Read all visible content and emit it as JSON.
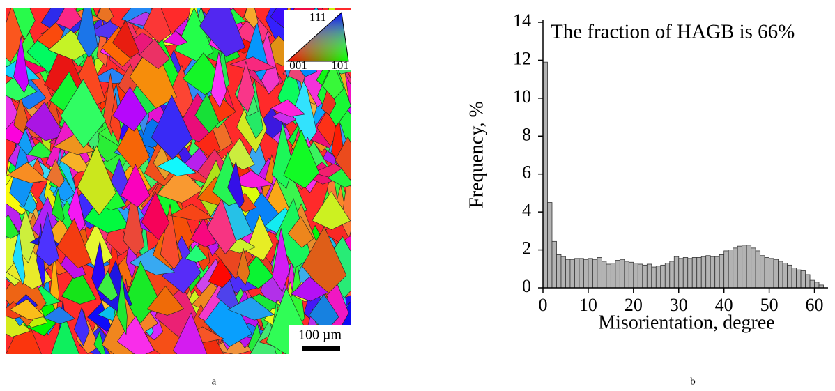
{
  "figure": {
    "panel_a": {
      "label": "a",
      "ipf_labels": [
        "111",
        "001",
        "101"
      ],
      "scale_bar": "100 µm"
    },
    "panel_b": {
      "label": "b"
    }
  },
  "chart_data": {
    "type": "histogram",
    "annotation": "The fraction of HAGB is 66%",
    "x_label": "Misorientation, degree",
    "y_label": "Frequency, %",
    "bins": [
      0,
      1,
      2,
      3,
      4,
      5,
      6,
      7,
      8,
      9,
      10,
      11,
      12,
      13,
      14,
      15,
      16,
      17,
      18,
      19,
      20,
      21,
      22,
      23,
      24,
      25,
      26,
      27,
      28,
      29,
      30,
      31,
      32,
      33,
      34,
      35,
      36,
      37,
      38,
      39,
      40,
      41,
      42,
      43,
      44,
      45,
      46,
      47,
      48,
      49,
      50,
      51,
      52,
      53,
      54,
      55,
      56,
      57,
      58,
      59,
      60,
      61,
      62
    ],
    "values": [
      11.9,
      4.5,
      2.45,
      1.75,
      1.65,
      1.5,
      1.5,
      1.55,
      1.55,
      1.5,
      1.55,
      1.5,
      1.6,
      1.4,
      1.25,
      1.3,
      1.45,
      1.5,
      1.4,
      1.35,
      1.3,
      1.25,
      1.2,
      1.25,
      1.1,
      1.15,
      1.2,
      1.3,
      1.4,
      1.65,
      1.55,
      1.6,
      1.55,
      1.6,
      1.6,
      1.65,
      1.7,
      1.65,
      1.65,
      1.75,
      1.95,
      2.0,
      2.1,
      2.2,
      2.25,
      2.25,
      2.1,
      1.95,
      1.7,
      1.6,
      1.55,
      1.5,
      1.4,
      1.3,
      1.2,
      1.05,
      0.95,
      0.9,
      0.7,
      0.4,
      0.3,
      0.15
    ],
    "color": "#b3b3b3",
    "xlim": [
      0,
      63
    ],
    "xticks": [
      0,
      10,
      20,
      30,
      40,
      50,
      60
    ],
    "ylim": [
      0,
      14
    ],
    "yticks": [
      0,
      2,
      4,
      6,
      8,
      10,
      12,
      14
    ]
  }
}
